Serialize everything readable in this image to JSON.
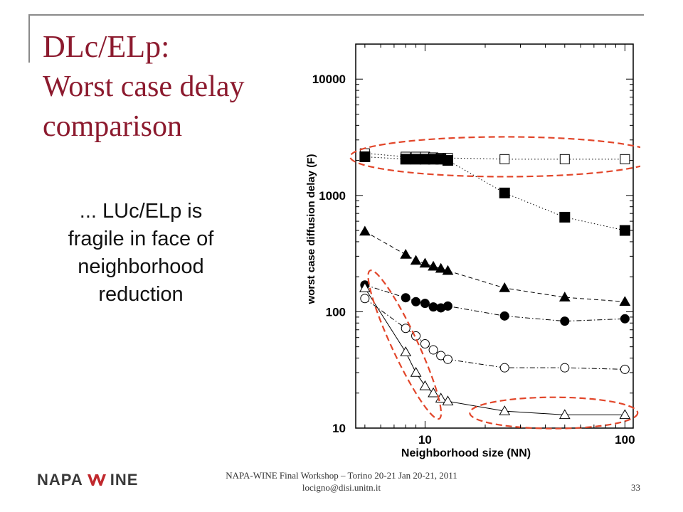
{
  "slide": {
    "title_line1": "DLc/ELp:",
    "title_line2": "Worst case delay",
    "title_line3": "comparison",
    "body_line1": "... LUc/ELp is",
    "body_line2": "fragile in face of",
    "body_line3": "neighborhood",
    "body_line4": "reduction",
    "title_color": "#8c1a2e"
  },
  "footer": {
    "logo_left": "NAPA",
    "logo_right": "INE",
    "logo_mark_color": "#c0282d",
    "line1": "NAPA-WINE Final Workshop – Torino 20-21 Jan 20-21, 2011",
    "line2": "locigno@disi.unitn.it",
    "page_number": "33"
  },
  "chart_data": {
    "type": "scatter",
    "xscale": "log",
    "yscale": "log",
    "xlim": [
      4.5,
      110
    ],
    "ylim": [
      10,
      20000
    ],
    "xlabel": "Neighborhood size (NN)",
    "ylabel": "worst case diffusion delay (F)",
    "xticks": [
      10,
      100
    ],
    "xtick_labels": [
      "10",
      "100"
    ],
    "yticks": [
      10,
      100,
      1000,
      10000
    ],
    "ytick_labels": [
      "10",
      "100",
      "1000",
      "10000"
    ],
    "grid": false,
    "series": [
      {
        "marker": "square-open",
        "line": "dotted",
        "x": [
          5,
          8,
          9,
          10,
          11,
          12,
          13,
          25,
          50,
          100
        ],
        "y": [
          2300,
          2150,
          2150,
          2150,
          2120,
          2100,
          2100,
          2050,
          2050,
          2050
        ]
      },
      {
        "marker": "square-filled",
        "line": "dotted",
        "x": [
          5,
          8,
          9,
          10,
          11,
          12,
          13,
          25,
          50,
          100
        ],
        "y": [
          2150,
          2050,
          2050,
          2050,
          2050,
          2050,
          2000,
          1050,
          650,
          500
        ]
      },
      {
        "marker": "triangle-filled",
        "line": "dashed",
        "x": [
          5,
          8,
          9,
          10,
          11,
          12,
          13,
          25,
          50,
          100
        ],
        "y": [
          490,
          310,
          275,
          260,
          245,
          235,
          225,
          160,
          133,
          122
        ]
      },
      {
        "marker": "circle-filled",
        "line": "dashdot",
        "x": [
          5,
          8,
          9,
          10,
          11,
          12,
          13,
          25,
          50,
          100
        ],
        "y": [
          170,
          132,
          122,
          118,
          110,
          108,
          112,
          92,
          83,
          87
        ]
      },
      {
        "marker": "circle-open",
        "line": "dashdot",
        "x": [
          5,
          8,
          9,
          10,
          11,
          12,
          13,
          25,
          50,
          100
        ],
        "y": [
          130,
          72,
          62,
          53,
          47,
          42,
          39,
          33,
          33,
          32
        ]
      },
      {
        "marker": "triangle-open",
        "line": "solid",
        "x": [
          5,
          8,
          9,
          10,
          11,
          12,
          13,
          25,
          50,
          100
        ],
        "y": [
          160,
          45,
          30,
          23,
          20,
          18,
          17,
          14,
          13,
          13
        ]
      }
    ],
    "highlight_color": "#e2462a"
  }
}
